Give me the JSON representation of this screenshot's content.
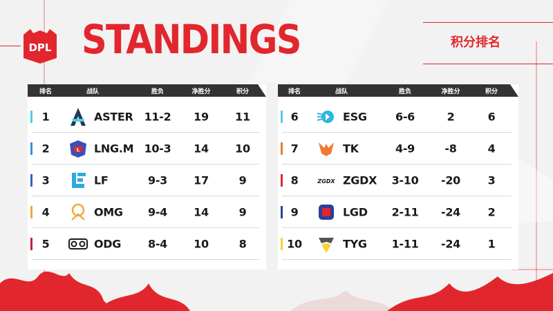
{
  "header": {
    "logo_text": "DPL",
    "title": "STANDINGS",
    "subtitle": "积分排名"
  },
  "columns": {
    "rank": "排名",
    "team": "战队",
    "record": "胜负",
    "net": "净胜分",
    "points": "积分"
  },
  "left_table": [
    {
      "rank": "1",
      "team": "ASTER",
      "record": "11-2",
      "net": "19",
      "points": "11",
      "accent": "#4dd0e1",
      "icon": "aster-logo-icon"
    },
    {
      "rank": "2",
      "team": "LNG.M",
      "record": "10-3",
      "net": "14",
      "points": "10",
      "accent": "#3a8be8",
      "icon": "lng-logo-icon"
    },
    {
      "rank": "3",
      "team": "LF",
      "record": "9-3",
      "net": "17",
      "points": "9",
      "accent": "#2f5fd0",
      "icon": "lf-logo-icon"
    },
    {
      "rank": "4",
      "team": "OMG",
      "record": "9-4",
      "net": "14",
      "points": "9",
      "accent": "#f0a93a",
      "icon": "omg-logo-icon"
    },
    {
      "rank": "5",
      "team": "ODG",
      "record": "8-4",
      "net": "10",
      "points": "8",
      "accent": "#c2203a",
      "icon": "odg-logo-icon"
    }
  ],
  "right_table": [
    {
      "rank": "6",
      "team": "ESG",
      "record": "6-6",
      "net": "2",
      "points": "6",
      "accent": "#4dd0e1",
      "icon": "esg-logo-icon"
    },
    {
      "rank": "7",
      "team": "TK",
      "record": "4-9",
      "net": "-8",
      "points": "4",
      "accent": "#f07a2e",
      "icon": "tk-logo-icon"
    },
    {
      "rank": "8",
      "team": "ZGDX",
      "record": "3-10",
      "net": "-20",
      "points": "3",
      "accent": "#e2262d",
      "icon": "zgdx-logo-icon"
    },
    {
      "rank": "9",
      "team": "LGD",
      "record": "2-11",
      "net": "-24",
      "points": "2",
      "accent": "#2a3f9e",
      "icon": "lgd-logo-icon"
    },
    {
      "rank": "10",
      "team": "TYG",
      "record": "1-11",
      "net": "-24",
      "points": "1",
      "accent": "#f5d23a",
      "icon": "tyg-logo-icon"
    }
  ],
  "logo_marks": {
    "zgdx": "ZGDX"
  },
  "colors": {
    "accent_red": "#e2262d",
    "header_dark": "#333333"
  }
}
